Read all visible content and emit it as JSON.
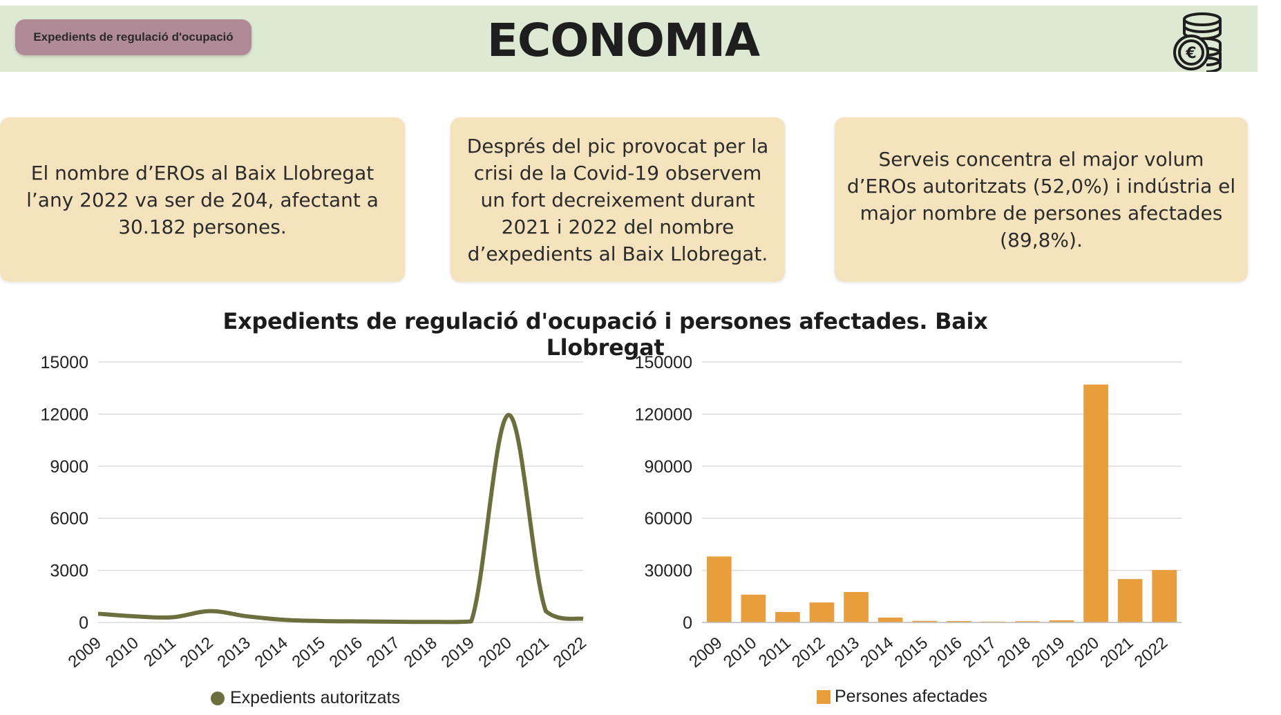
{
  "header": {
    "tag": "Expedients de regulació d'ocupació",
    "title": "ECONOMIA",
    "icon": "coins-euro-icon",
    "background_color": "#dde9d3",
    "tag_color": "#b08a97"
  },
  "cards": [
    {
      "text": "El nombre d’EROs al Baix Llobregat l’any 2022 va ser de 204, afectant a 30.182 persones."
    },
    {
      "text": "Després del pic provocat per la crisi de la Covid-19 observem un fort decreixement durant 2021 i 2022 del nombre d’expedients al Baix Llobregat."
    },
    {
      "text": "Serveis concentra el major volum d’EROs autoritzats (52,0%) i indústria el major nombre de persones afectades (89,8%)."
    }
  ],
  "chart_title": "Expedients de regulació d'ocupació i persones afectades. Baix Llobregat",
  "chart_data": [
    {
      "type": "line",
      "x": [
        "2009",
        "2010",
        "2011",
        "2012",
        "2013",
        "2014",
        "2015",
        "2016",
        "2017",
        "2018",
        "2019",
        "2020",
        "2021",
        "2022"
      ],
      "series": [
        {
          "name": "Expedients autoritzats",
          "color": "#6b6f3e",
          "values": [
            500,
            350,
            300,
            650,
            350,
            150,
            80,
            60,
            40,
            30,
            60,
            11950,
            650,
            204
          ]
        }
      ],
      "ylim": [
        0,
        15000
      ],
      "yticks": [
        "0",
        "3000",
        "6000",
        "9000",
        "12000",
        "15000"
      ],
      "grid": true,
      "legend": "bottom"
    },
    {
      "type": "bar",
      "categories": [
        "2009",
        "2010",
        "2011",
        "2012",
        "2013",
        "2014",
        "2015",
        "2016",
        "2017",
        "2018",
        "2019",
        "2020",
        "2021",
        "2022"
      ],
      "series": [
        {
          "name": "Persones afectades",
          "color": "#e89e3c",
          "values": [
            38000,
            16000,
            6000,
            11500,
            17500,
            2800,
            900,
            800,
            500,
            700,
            1200,
            137000,
            25000,
            30182
          ]
        }
      ],
      "ylim": [
        0,
        150000
      ],
      "yticks": [
        "0",
        "30000",
        "60000",
        "90000",
        "120000",
        "150000"
      ],
      "grid": true,
      "legend": "bottom"
    }
  ]
}
